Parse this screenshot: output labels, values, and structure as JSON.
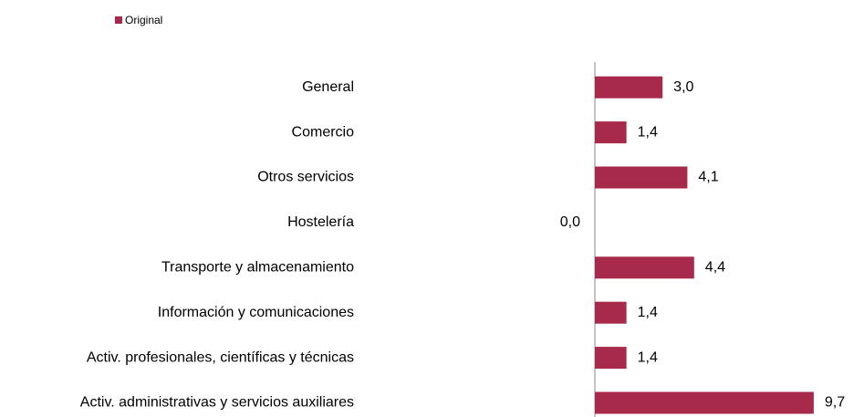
{
  "chart_data": {
    "type": "bar",
    "orientation": "horizontal",
    "categories": [
      "General",
      "Comercio",
      "Otros servicios",
      "Hostelería",
      "Transporte y almacenamiento",
      "Información y comunicaciones",
      "Activ. profesionales, científicas y técnicas",
      "Activ. administrativas y servicios auxiliares"
    ],
    "series": [
      {
        "name": "Original",
        "color": "#a82a4a",
        "values": [
          3.0,
          1.4,
          4.1,
          0.0,
          4.4,
          1.4,
          1.4,
          9.7
        ],
        "value_labels": [
          "3,0",
          "1,4",
          "4,1",
          "0,0",
          "4,4",
          "1,4",
          "1,4",
          "9,7"
        ]
      }
    ],
    "xlim": [
      0,
      11
    ],
    "legend": "top-left"
  }
}
